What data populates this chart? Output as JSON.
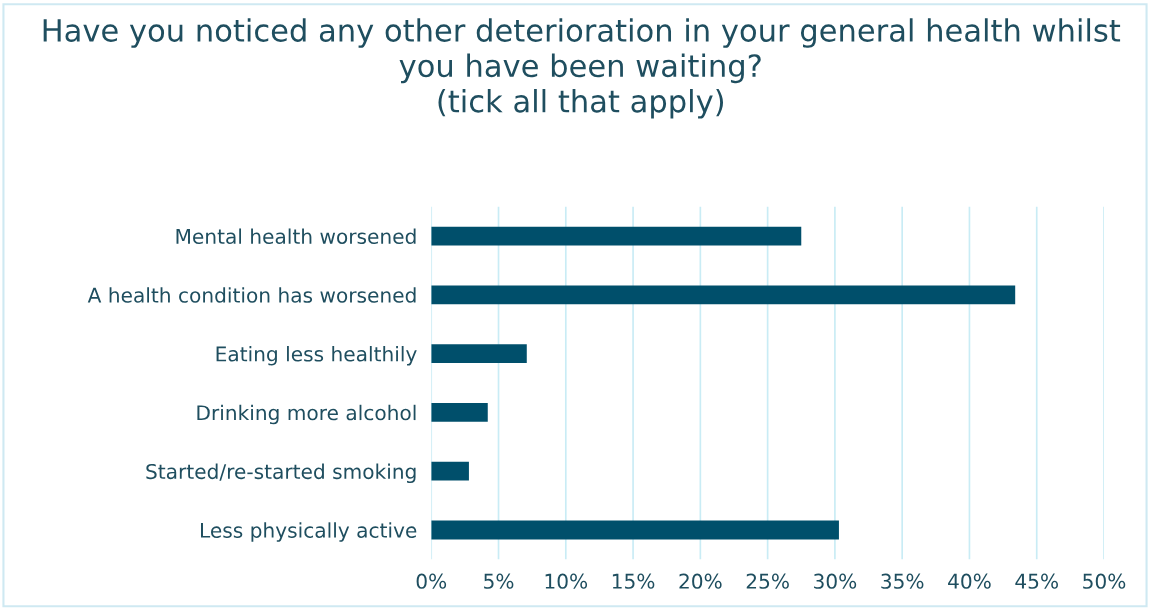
{
  "chart_data": {
    "type": "bar",
    "orientation": "horizontal",
    "title": "Have you noticed any other deterioration in your general health whilst you have been waiting?\n(tick all that apply)",
    "categories": [
      "Mental health worsened",
      "A health condition has worsened",
      "Eating less healthily",
      "Drinking more alcohol",
      "Started/re-started smoking",
      "Less physically active"
    ],
    "values": [
      27.5,
      43.4,
      7.1,
      4.2,
      2.8,
      30.3
    ],
    "color": "#004f6b",
    "xlim": [
      0,
      50
    ],
    "xticks": [
      {
        "value": 0,
        "label": "0%"
      },
      {
        "value": 5,
        "label": "5%"
      },
      {
        "value": 10,
        "label": "10%"
      },
      {
        "value": 15,
        "label": "15%"
      },
      {
        "value": 20,
        "label": "20%"
      },
      {
        "value": 25,
        "label": "25%"
      },
      {
        "value": 30,
        "label": "30%"
      },
      {
        "value": 35,
        "label": "35%"
      },
      {
        "value": 40,
        "label": "40%"
      },
      {
        "value": 45,
        "label": "45%"
      },
      {
        "value": 50,
        "label": "50%"
      }
    ],
    "grid": "x"
  }
}
